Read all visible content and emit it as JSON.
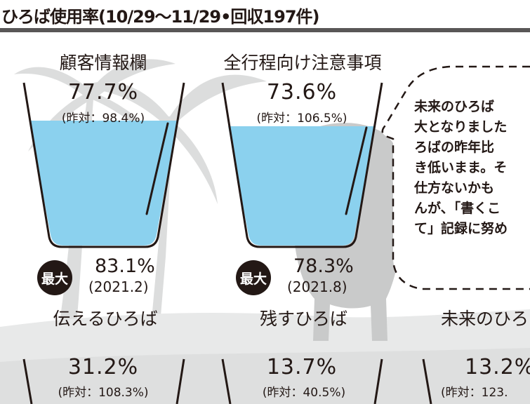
{
  "header": {
    "title": "ひろば使用率(10/29〜11/29•回収197件)"
  },
  "metrics": [
    {
      "title": "顧客情報欄",
      "rate": "77.7%",
      "yoy": "(昨対：98.4%)",
      "fill_level": 0.777,
      "max_label": "最大",
      "max_value": "83.1%",
      "max_date": "(2021.2)"
    },
    {
      "title": "全行程向け注意事項",
      "rate": "73.6%",
      "yoy": "(昨対：106.5%)",
      "fill_level": 0.736,
      "max_label": "最大",
      "max_value": "78.3%",
      "max_date": "(2021.8)"
    },
    {
      "title": "伝えるひろば",
      "rate": "31.2%",
      "yoy": "(昨対：108.3%)"
    },
    {
      "title": "残すひろば",
      "rate": "13.7%",
      "yoy": "(昨対：40.5%)"
    },
    {
      "title": "未来のひろ",
      "rate": "13.2%",
      "yoy": "(昨対：123."
    }
  ],
  "comment": {
    "lines": [
      "未来のひろば",
      "大となりました",
      "ろばの昨年比",
      "き低いまま。そ",
      "仕方ないかも"
    ],
    "line6_prefix": "んが、",
    "line6_emphasis": "「書くこ",
    "line7_emphasis": "て」",
    "line7_suffix": "記録に努め"
  },
  "colors": {
    "water": "#8bd1ee",
    "ink": "#231815",
    "rule": "#595757",
    "bg_art": "#d7d8d8"
  }
}
